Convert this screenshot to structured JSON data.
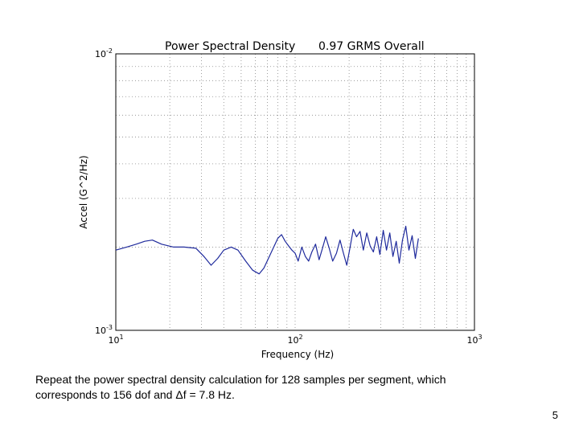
{
  "chart_data": {
    "type": "line",
    "title": "Power Spectral Density",
    "subtitle": "0.97 GRMS Overall",
    "xlabel": "Frequency (Hz)",
    "ylabel": "Accel (G^2/Hz)",
    "x_scale": "log",
    "y_scale": "log",
    "xlim": [
      10,
      1000
    ],
    "ylim": [
      0.001,
      0.01
    ],
    "grid": true,
    "x_ticks": [
      {
        "value": 10,
        "base": "10",
        "exp": "1"
      },
      {
        "value": 100,
        "base": "10",
        "exp": "2"
      },
      {
        "value": 1000,
        "base": "10",
        "exp": "3"
      }
    ],
    "y_ticks": [
      {
        "value": 0.001,
        "base": "10",
        "exp": "-3"
      },
      {
        "value": 0.01,
        "base": "10",
        "exp": "-2"
      }
    ],
    "series": [
      {
        "color": "#1f2a9c",
        "x": [
          10.0,
          11.5,
          13.0,
          14.5,
          16.0,
          18.0,
          21.0,
          24.0,
          28.0,
          31.0,
          34.0,
          37.0,
          40.0,
          44.0,
          48.0,
          53.0,
          58.0,
          63.0,
          67.0,
          71.0,
          76.0,
          80.0,
          84.0,
          88.0,
          92.0,
          96.0,
          100.0,
          104.0,
          109.0,
          114.0,
          119.0,
          124.0,
          130.0,
          136.0,
          142.0,
          148.0,
          155.0,
          162.0,
          170.0,
          178.0,
          186.0,
          194.0,
          202.0,
          211.0,
          220.0,
          230.0,
          240.0,
          251.0,
          262.0,
          273.0,
          285.0,
          297.0,
          310.0,
          323.0,
          337.0,
          351.0,
          366.0,
          381.0,
          397.0,
          414.0,
          431.0,
          449.0,
          468.0,
          487.0
        ],
        "y": [
          0.00195,
          0.002,
          0.00205,
          0.0021,
          0.00212,
          0.00205,
          0.002,
          0.002,
          0.00198,
          0.00185,
          0.00172,
          0.00182,
          0.00195,
          0.002,
          0.00195,
          0.00178,
          0.00165,
          0.0016,
          0.00168,
          0.00182,
          0.002,
          0.00215,
          0.00222,
          0.0021,
          0.00202,
          0.00195,
          0.0019,
          0.00178,
          0.002,
          0.00185,
          0.00178,
          0.00192,
          0.00205,
          0.0018,
          0.00198,
          0.00218,
          0.00198,
          0.00178,
          0.0019,
          0.00212,
          0.0019,
          0.00172,
          0.00198,
          0.00232,
          0.00218,
          0.00228,
          0.00195,
          0.00225,
          0.00202,
          0.00192,
          0.00218,
          0.00188,
          0.0023,
          0.00195,
          0.00225,
          0.00185,
          0.0021,
          0.00175,
          0.00212,
          0.00238,
          0.00195,
          0.0022,
          0.00182,
          0.00215
        ]
      }
    ]
  },
  "caption": {
    "line1": "Repeat the power spectral density calculation for 128 samples per segment, which",
    "line2": "corresponds to 156 dof and Δf = 7.8 Hz."
  },
  "page_number": "5"
}
